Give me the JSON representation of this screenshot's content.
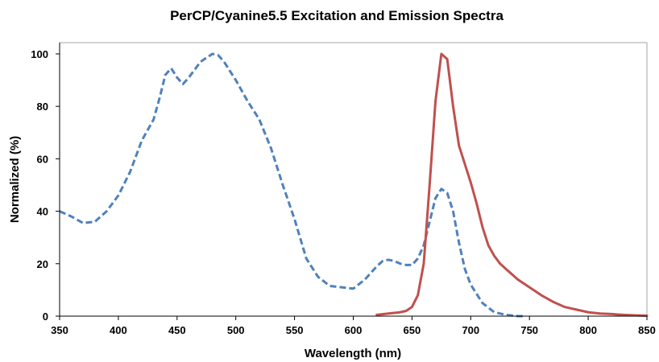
{
  "chart_data": {
    "type": "line",
    "title": "PerCP/Cyanine5.5 Excitation and Emission Spectra",
    "xlabel": "Wavelength (nm)",
    "ylabel": "Normalized (%)",
    "xlim": [
      350,
      850
    ],
    "ylim": [
      0,
      100
    ],
    "xticks": [
      350,
      400,
      450,
      500,
      550,
      600,
      650,
      700,
      750,
      800,
      850
    ],
    "yticks": [
      0,
      20,
      40,
      60,
      80,
      100
    ],
    "grid": false,
    "legend": "none",
    "series": [
      {
        "role": "excitation",
        "color": "#4F81BD",
        "dash": "dashed",
        "x": [
          350,
          360,
          370,
          380,
          390,
          400,
          410,
          420,
          430,
          435,
          440,
          445,
          450,
          455,
          460,
          470,
          480,
          485,
          490,
          500,
          510,
          520,
          530,
          540,
          550,
          560,
          570,
          580,
          590,
          600,
          610,
          620,
          625,
          630,
          635,
          640,
          645,
          650,
          655,
          660,
          665,
          670,
          675,
          680,
          685,
          690,
          695,
          700,
          710,
          720,
          730,
          740,
          745
        ],
        "y": [
          40,
          38,
          35.5,
          36,
          40,
          46,
          55,
          67,
          75,
          83,
          92,
          94.5,
          91,
          88.5,
          91,
          97,
          100,
          99.5,
          97,
          90,
          82,
          75,
          64,
          50,
          37,
          22,
          15,
          11.5,
          11,
          10.5,
          14,
          19,
          21,
          21.5,
          21,
          20,
          19.5,
          19.5,
          22,
          27,
          36,
          45,
          48.5,
          47,
          40,
          28,
          18,
          12,
          5,
          1.5,
          0.5,
          0,
          0
        ]
      },
      {
        "role": "emission",
        "color": "#C0504D",
        "dash": "solid",
        "x": [
          620,
          630,
          640,
          645,
          650,
          655,
          660,
          665,
          670,
          675,
          680,
          685,
          690,
          695,
          700,
          705,
          710,
          715,
          720,
          725,
          730,
          740,
          750,
          760,
          770,
          780,
          790,
          800,
          810,
          820,
          830,
          840,
          850
        ],
        "y": [
          0.5,
          1,
          1.5,
          2,
          3.5,
          8,
          20,
          50,
          82,
          100,
          98,
          80,
          65,
          58,
          51,
          43,
          34,
          27,
          23,
          20,
          18,
          14,
          11,
          8,
          5.5,
          3.5,
          2.5,
          1.5,
          1,
          0.8,
          0.5,
          0.3,
          0.2
        ]
      }
    ]
  }
}
